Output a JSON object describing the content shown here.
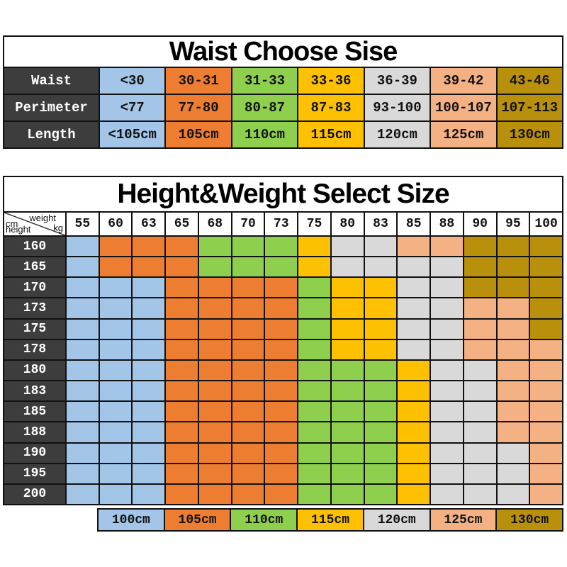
{
  "palette": {
    "B": "#a2c5e8",
    "O": "#ed7d31",
    "G": "#8ed04e",
    "Y": "#fec101",
    "E": "#d9d9d9",
    "P": "#f4b183",
    "D": "#b8900b",
    "header_dark": "#3d3d3d",
    "grid_line": "#111111"
  },
  "code_to_size": {
    "B": "100cm",
    "O": "105cm",
    "G": "110cm",
    "Y": "115cm",
    "E": "120cm",
    "P": "125cm",
    "D": "130cm"
  },
  "corner": {
    "weight": "weight",
    "kg": "kg",
    "cm": "cm",
    "height": "height"
  },
  "chart_data": [
    {
      "type": "table",
      "title": "Waist Choose Sise",
      "row_headers": [
        "Waist",
        "Perimeter",
        "Length"
      ],
      "rows": [
        [
          "<30",
          "30-31",
          "31-33",
          "33-36",
          "36-39",
          "39-42",
          "43-46"
        ],
        [
          "<77",
          "77-80",
          "80-87",
          "87-83",
          "93-100",
          "100-107",
          "107-113"
        ],
        [
          "<105cm",
          "105cm",
          "110cm",
          "115cm",
          "120cm",
          "125cm",
          "130cm"
        ]
      ],
      "column_color_codes": "BOGYEPD"
    },
    {
      "type": "heatmap",
      "title": "Height&Weight Select Size",
      "xlabel": "weight kg",
      "ylabel": "cm height",
      "x": [
        "55",
        "60",
        "63",
        "65",
        "68",
        "70",
        "73",
        "75",
        "80",
        "83",
        "85",
        "88",
        "90",
        "95",
        "100"
      ],
      "y": [
        "160",
        "165",
        "170",
        "173",
        "175",
        "178",
        "180",
        "183",
        "185",
        "188",
        "190",
        "195",
        "200"
      ],
      "cell_codes": [
        "BOOOGGGYEEPPDDD",
        "BOOOGGGYEEEEDDD",
        "BBBOOOOGYYEEDDD",
        "BBBOOOOGYYEEPPD",
        "BBBOOOOGYYEEPPD",
        "BBBOOOOGYYEEPPP",
        "BBBOOOOGGGYEEPP",
        "BBBOOOOGGGYEEPP",
        "BBBOOOOGGGYEEPP",
        "BBBOOOOGGGYEEPP",
        "BBBOOOOGGGYEEEP",
        "BBBOOOOGGGYEEEP",
        "BBBOOOOGGGYEEEP"
      ],
      "legend_position": "bottom",
      "legend": [
        {
          "code": "B",
          "label": "100cm"
        },
        {
          "code": "O",
          "label": "105cm"
        },
        {
          "code": "G",
          "label": "110cm"
        },
        {
          "code": "Y",
          "label": "115cm"
        },
        {
          "code": "E",
          "label": "120cm"
        },
        {
          "code": "P",
          "label": "125cm"
        },
        {
          "code": "D",
          "label": "130cm"
        }
      ]
    }
  ]
}
